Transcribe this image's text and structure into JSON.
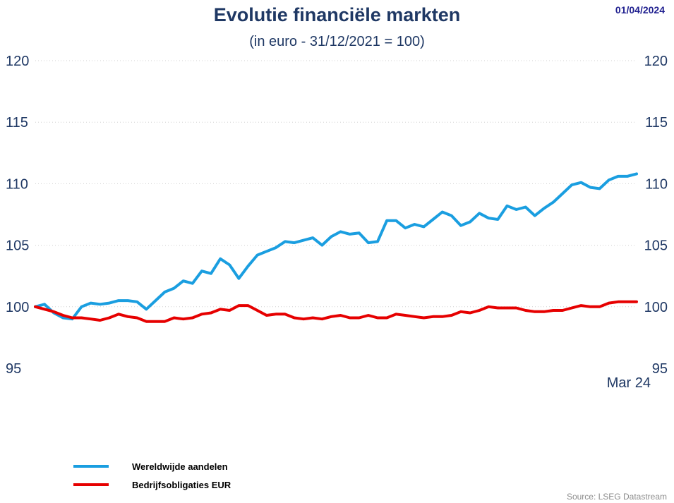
{
  "header": {
    "title": "Evolutie financiële markten",
    "subtitle": "(in euro - 31/12/2021 = 100)",
    "date": "01/04/2024"
  },
  "footer": {
    "source": "Source: LSEG Datastream"
  },
  "chart_data": {
    "type": "line",
    "title": "Evolutie financiële markten",
    "subtitle": "(in euro - 31/12/2021 = 100)",
    "ylim": [
      95,
      120
    ],
    "yticks": [
      95,
      100,
      105,
      110,
      115,
      120
    ],
    "dual_y_axis": true,
    "grid": "horizontal dotted",
    "x_last_label": "Mar 24",
    "legend_position": "bottom-left",
    "series": [
      {
        "name": "Wereldwijde aandelen",
        "color": "#1a9ee0",
        "values": [
          100.0,
          100.2,
          99.5,
          99.1,
          99.0,
          100.0,
          100.3,
          100.2,
          100.3,
          100.5,
          100.5,
          100.4,
          99.8,
          100.5,
          101.2,
          101.5,
          102.1,
          101.9,
          102.9,
          102.7,
          103.9,
          103.4,
          102.3,
          103.3,
          104.2,
          104.5,
          104.8,
          105.3,
          105.2,
          105.4,
          105.6,
          105.0,
          105.7,
          106.1,
          105.9,
          106.0,
          105.2,
          105.3,
          107.0,
          107.0,
          106.4,
          106.7,
          106.5,
          107.1,
          107.7,
          107.4,
          106.6,
          106.9,
          107.6,
          107.2,
          107.1,
          108.2,
          107.9,
          108.1,
          107.4,
          108.0,
          108.5,
          109.2,
          109.9,
          110.1,
          109.7,
          109.6,
          110.3,
          110.6,
          110.6,
          110.8
        ]
      },
      {
        "name": "Bedrijfsobligaties EUR",
        "color": "#e60000",
        "values": [
          100.0,
          99.8,
          99.6,
          99.3,
          99.1,
          99.1,
          99.0,
          98.9,
          99.1,
          99.4,
          99.2,
          99.1,
          98.8,
          98.8,
          98.8,
          99.1,
          99.0,
          99.1,
          99.4,
          99.5,
          99.8,
          99.7,
          100.1,
          100.1,
          99.7,
          99.3,
          99.4,
          99.4,
          99.1,
          99.0,
          99.1,
          99.0,
          99.2,
          99.3,
          99.1,
          99.1,
          99.3,
          99.1,
          99.1,
          99.4,
          99.3,
          99.2,
          99.1,
          99.2,
          99.2,
          99.3,
          99.6,
          99.5,
          99.7,
          100.0,
          99.9,
          99.9,
          99.9,
          99.7,
          99.6,
          99.6,
          99.7,
          99.7,
          99.9,
          100.1,
          100.0,
          100.0,
          100.3,
          100.4,
          100.4,
          100.4
        ]
      }
    ]
  }
}
